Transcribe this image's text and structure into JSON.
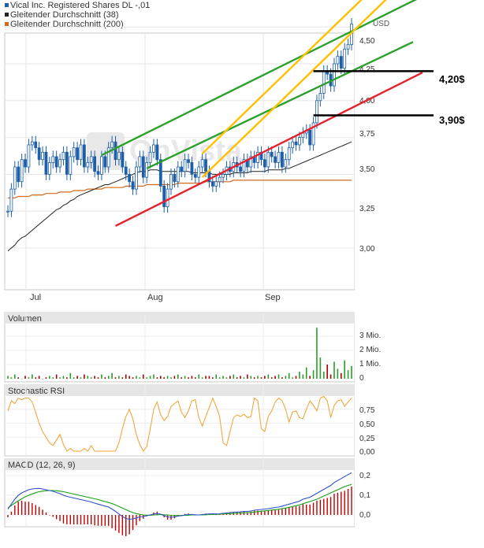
{
  "legend": [
    {
      "label": "Vical Inc. Registered Shares DL -,01",
      "color": "#1f5fa8"
    },
    {
      "label": "Gleitender Durchschnitt (38)",
      "color": "#222222"
    },
    {
      "label": "Gleitender Durchschnitt (200)",
      "color": "#d2691e"
    }
  ],
  "currency": "USD",
  "watermark": "OnVista",
  "annotations": {
    "level_high": "4,20$",
    "level_low": "3,90$"
  },
  "colors": {
    "green": "#2ca02c",
    "yellow": "#ffc000",
    "red": "#e8202a",
    "volume": "#b00000",
    "stoch": "#f0a030",
    "macd": "#3050c8",
    "signal": "#18a018"
  },
  "chart_data": [
    {
      "type": "candlestick",
      "title": "Vical Inc. Registered Shares DL -,01",
      "ylabel": "USD",
      "x_ticks": [
        "Jul",
        "Aug",
        "Sep"
      ],
      "y_ticks": [
        "3,00",
        "3,25",
        "3,50",
        "3,75",
        "4,00",
        "4,25",
        "4,50"
      ],
      "ylim": [
        2.75,
        4.65
      ],
      "close": [
        3.25,
        3.4,
        3.55,
        3.45,
        3.6,
        3.55,
        3.7,
        3.72,
        3.68,
        3.6,
        3.65,
        3.5,
        3.58,
        3.62,
        3.55,
        3.6,
        3.65,
        3.5,
        3.62,
        3.68,
        3.6,
        3.7,
        3.55,
        3.58,
        3.62,
        3.52,
        3.5,
        3.62,
        3.55,
        3.68,
        3.72,
        3.6,
        3.65,
        3.55,
        3.5,
        3.45,
        3.4,
        3.55,
        3.62,
        3.48,
        3.58,
        3.65,
        3.7,
        3.6,
        3.42,
        3.28,
        3.4,
        3.5,
        3.45,
        3.55,
        3.52,
        3.6,
        3.58,
        3.5,
        3.48,
        3.55,
        3.6,
        3.52,
        3.45,
        3.42,
        3.45,
        3.48,
        3.5,
        3.55,
        3.52,
        3.58,
        3.55,
        3.52,
        3.6,
        3.55,
        3.62,
        3.58,
        3.65,
        3.6,
        3.55,
        3.65,
        3.62,
        3.58,
        3.65,
        3.55,
        3.6,
        3.68,
        3.72,
        3.7,
        3.75,
        3.78,
        3.8,
        3.7,
        3.85,
        4.0,
        4.05,
        4.2,
        4.18,
        4.1,
        4.25,
        4.3,
        4.22,
        4.35,
        4.38,
        4.52
      ],
      "ma38": [
        2.98,
        3.0,
        3.02,
        3.05,
        3.07,
        3.08,
        3.1,
        3.12,
        3.14,
        3.16,
        3.18,
        3.2,
        3.22,
        3.24,
        3.26,
        3.27,
        3.29,
        3.3,
        3.32,
        3.33,
        3.35,
        3.36,
        3.37,
        3.38,
        3.39,
        3.4,
        3.41,
        3.42,
        3.43,
        3.43,
        3.44,
        3.45,
        3.46,
        3.47,
        3.48,
        3.49,
        3.5,
        3.51,
        3.52,
        3.52,
        3.52,
        3.53,
        3.53,
        3.53,
        3.52,
        3.52,
        3.52,
        3.52,
        3.52,
        3.52,
        3.52,
        3.52,
        3.52,
        3.51,
        3.51,
        3.51,
        3.51,
        3.51,
        3.51,
        3.5,
        3.5,
        3.5,
        3.5,
        3.5,
        3.5,
        3.51,
        3.51,
        3.51,
        3.51,
        3.51,
        3.52,
        3.52,
        3.52,
        3.52,
        3.52,
        3.53,
        3.53,
        3.53,
        3.53,
        3.53,
        3.54,
        3.54,
        3.55,
        3.56,
        3.57,
        3.58,
        3.59,
        3.6,
        3.61,
        3.62,
        3.63,
        3.64,
        3.65,
        3.66,
        3.67,
        3.68,
        3.69,
        3.7,
        3.71,
        3.72
      ],
      "ma200": [
        3.34,
        3.34,
        3.34,
        3.35,
        3.35,
        3.35,
        3.35,
        3.36,
        3.36,
        3.36,
        3.36,
        3.37,
        3.37,
        3.37,
        3.37,
        3.38,
        3.38,
        3.38,
        3.38,
        3.39,
        3.39,
        3.39,
        3.39,
        3.4,
        3.4,
        3.4,
        3.4,
        3.4,
        3.41,
        3.41,
        3.41,
        3.41,
        3.41,
        3.41,
        3.42,
        3.42,
        3.42,
        3.42,
        3.42,
        3.42,
        3.43,
        3.43,
        3.43,
        3.43,
        3.43,
        3.43,
        3.43,
        3.43,
        3.43,
        3.44,
        3.44,
        3.44,
        3.44,
        3.44,
        3.44,
        3.44,
        3.44,
        3.45,
        3.45,
        3.45,
        3.45,
        3.45,
        3.45,
        3.45,
        3.45,
        3.46,
        3.46,
        3.46,
        3.46,
        3.46,
        3.46,
        3.46,
        3.46,
        3.46,
        3.46,
        3.46,
        3.46,
        3.46,
        3.46,
        3.46,
        3.46,
        3.46,
        3.46,
        3.46,
        3.46,
        3.46,
        3.46,
        3.46,
        3.46,
        3.46,
        3.46,
        3.46,
        3.46,
        3.46,
        3.46,
        3.46,
        3.46,
        3.46,
        3.46,
        3.46
      ],
      "trendlines": [
        {
          "color": "green",
          "from": [
            27,
            3.63
          ],
          "to": [
            99,
            4.47
          ]
        },
        {
          "color": "green",
          "from": [
            40,
            3.54
          ],
          "to": [
            99,
            4.2
          ]
        },
        {
          "color": "yellow",
          "from": [
            56,
            3.48
          ],
          "to": [
            99,
            4.46
          ]
        },
        {
          "color": "yellow",
          "from": [
            56,
            3.64
          ],
          "to": [
            99,
            4.62
          ]
        },
        {
          "color": "red",
          "from": [
            31,
            3.15
          ],
          "to": [
            99,
            3.95
          ]
        }
      ],
      "levels": [
        4.2,
        3.9
      ]
    },
    {
      "type": "bar",
      "title": "Volumen",
      "y_ticks": [
        "0",
        "1 Mio.",
        "2 Mio.",
        "3 Mio."
      ],
      "ylim": [
        0,
        3.7
      ],
      "values": [
        0.2,
        0.1,
        0.3,
        0.1,
        0.0,
        0.2,
        0.1,
        0.3,
        0.1,
        0.2,
        0.0,
        0.1,
        0.2,
        0.1,
        0.3,
        0.1,
        0.2,
        0.1,
        0.4,
        0.1,
        0.2,
        0.1,
        0.3,
        0.2,
        0.1,
        0.2,
        0.1,
        0.3,
        0.1,
        0.2,
        0.4,
        0.1,
        0.2,
        0.1,
        0.3,
        0.2,
        0.1,
        0.2,
        0.1,
        0.3,
        0.1,
        0.2,
        0.3,
        0.1,
        0.2,
        0.1,
        0.2,
        0.1,
        0.2,
        0.3,
        0.1,
        0.2,
        0.1,
        0.2,
        0.1,
        0.3,
        0.1,
        0.2,
        0.2,
        0.1,
        0.3,
        0.1,
        0.2,
        0.1,
        0.2,
        0.3,
        0.1,
        0.2,
        0.1,
        0.3,
        0.2,
        0.1,
        0.2,
        0.1,
        0.2,
        0.3,
        0.1,
        0.2,
        0.3,
        0.1,
        0.2,
        0.4,
        0.1,
        0.2,
        0.5,
        0.3,
        0.8,
        0.2,
        0.6,
        3.6,
        1.5,
        0.5,
        1.0,
        0.3,
        1.2,
        0.7,
        0.4,
        1.3,
        0.6,
        0.9
      ]
    },
    {
      "type": "line",
      "title": "Stochastic RSI",
      "y_ticks": [
        "0,00",
        "0,25",
        "0,50",
        "0,75"
      ],
      "ylim": [
        0,
        1
      ],
      "values": [
        0.72,
        0.9,
        0.85,
        0.95,
        0.92,
        0.95,
        0.95,
        0.88,
        0.7,
        0.5,
        0.35,
        0.25,
        0.15,
        0.1,
        0.2,
        0.3,
        0.12,
        0.0,
        0.05,
        0.0,
        0.0,
        0.0,
        0.05,
        0.0,
        0.1,
        0.0,
        0.0,
        0.0,
        0.0,
        0.0,
        0.0,
        0.0,
        0.15,
        0.4,
        0.62,
        0.75,
        0.58,
        0.3,
        0.12,
        0.0,
        0.08,
        0.4,
        0.75,
        0.88,
        0.65,
        0.55,
        0.62,
        0.8,
        0.85,
        0.9,
        0.7,
        0.6,
        0.72,
        0.9,
        0.92,
        0.6,
        0.45,
        0.62,
        0.78,
        0.95,
        0.8,
        0.62,
        0.15,
        0.1,
        0.35,
        0.6,
        0.65,
        0.62,
        0.66,
        0.6,
        0.62,
        0.95,
        0.9,
        0.4,
        0.35,
        0.62,
        0.72,
        0.88,
        0.95,
        0.9,
        0.75,
        0.52,
        0.7,
        0.72,
        0.6,
        0.58,
        0.75,
        0.9,
        0.82,
        0.72,
        0.95,
        0.98,
        0.9,
        0.6,
        0.82,
        0.9,
        0.92,
        0.8,
        0.88,
        0.95
      ]
    },
    {
      "type": "line",
      "title": "MACD (12, 26, 9)",
      "y_ticks": [
        "0,0",
        "0,1",
        "0,2"
      ],
      "ylim": [
        -0.06,
        0.23
      ],
      "macd": [
        0.03,
        0.055,
        0.08,
        0.1,
        0.112,
        0.12,
        0.128,
        0.132,
        0.134,
        0.135,
        0.132,
        0.128,
        0.124,
        0.12,
        0.114,
        0.108,
        0.1,
        0.094,
        0.09,
        0.086,
        0.082,
        0.078,
        0.074,
        0.07,
        0.066,
        0.06,
        0.055,
        0.05,
        0.045,
        0.04,
        0.03,
        0.018,
        0.005,
        -0.008,
        -0.018,
        -0.022,
        -0.02,
        -0.015,
        -0.01,
        -0.008,
        -0.004,
        0.0,
        0.005,
        0.008,
        0.004,
        -0.004,
        -0.01,
        -0.012,
        -0.01,
        -0.006,
        -0.004,
        0.0,
        0.002,
        0.002,
        0.001,
        0.0,
        0.002,
        0.004,
        0.005,
        0.006,
        0.005,
        0.006,
        0.008,
        0.01,
        0.012,
        0.014,
        0.015,
        0.016,
        0.018,
        0.018,
        0.02,
        0.024,
        0.026,
        0.028,
        0.03,
        0.032,
        0.035,
        0.038,
        0.04,
        0.045,
        0.05,
        0.055,
        0.06,
        0.065,
        0.07,
        0.08,
        0.085,
        0.09,
        0.1,
        0.11,
        0.12,
        0.13,
        0.14,
        0.15,
        0.165,
        0.175,
        0.185,
        0.195,
        0.205,
        0.215
      ],
      "signal": [
        0.035,
        0.048,
        0.06,
        0.072,
        0.082,
        0.092,
        0.1,
        0.107,
        0.113,
        0.118,
        0.121,
        0.123,
        0.124,
        0.124,
        0.123,
        0.121,
        0.118,
        0.114,
        0.11,
        0.106,
        0.102,
        0.098,
        0.094,
        0.09,
        0.086,
        0.082,
        0.078,
        0.073,
        0.068,
        0.063,
        0.058,
        0.051,
        0.043,
        0.035,
        0.027,
        0.019,
        0.012,
        0.007,
        0.003,
        0.0,
        -0.001,
        -0.001,
        0.0,
        0.001,
        0.002,
        0.001,
        0.0,
        -0.002,
        -0.003,
        -0.003,
        -0.003,
        -0.002,
        -0.001,
        0.0,
        0.0,
        0.0,
        0.0,
        0.001,
        0.002,
        0.003,
        0.003,
        0.004,
        0.005,
        0.006,
        0.007,
        0.008,
        0.009,
        0.01,
        0.011,
        0.012,
        0.013,
        0.015,
        0.017,
        0.019,
        0.021,
        0.023,
        0.025,
        0.027,
        0.029,
        0.032,
        0.035,
        0.039,
        0.043,
        0.047,
        0.051,
        0.057,
        0.063,
        0.068,
        0.074,
        0.08,
        0.088,
        0.096,
        0.104,
        0.112,
        0.12,
        0.128,
        0.136,
        0.144,
        0.15,
        0.155
      ],
      "histogram": "macd - signal"
    }
  ]
}
